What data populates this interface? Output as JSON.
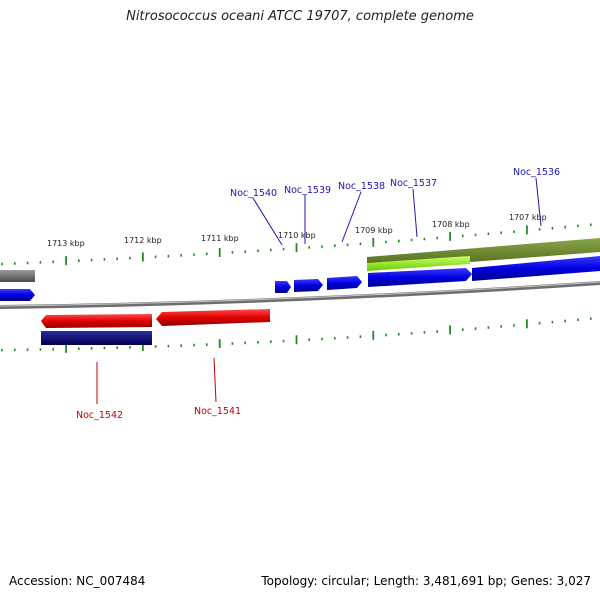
{
  "title": "Nitrosococcus oceani ATCC 19707, complete genome",
  "footer": {
    "accession": "Accession: NC_007484",
    "topology": "Topology: circular; Length: 3,481,691 bp; Genes: 3,027"
  },
  "ruler_labels": [
    "1713 kbp",
    "1712 kbp",
    "1711 kbp",
    "1710 kbp",
    "1709 kbp",
    "1708 kbp",
    "1707 kbp"
  ],
  "gene_labels_top": [
    "Noc_1540",
    "Noc_1539",
    "Noc_1538",
    "Noc_1537",
    "Noc_1536"
  ],
  "gene_labels_bottom": [
    "Noc_1542",
    "Noc_1541"
  ],
  "colors": {
    "forward_gene": "#0000ee",
    "reverse_gene": "#ee0000",
    "rna": "#6b8e23",
    "tick": "#228b22",
    "backbone": "#808080"
  }
}
